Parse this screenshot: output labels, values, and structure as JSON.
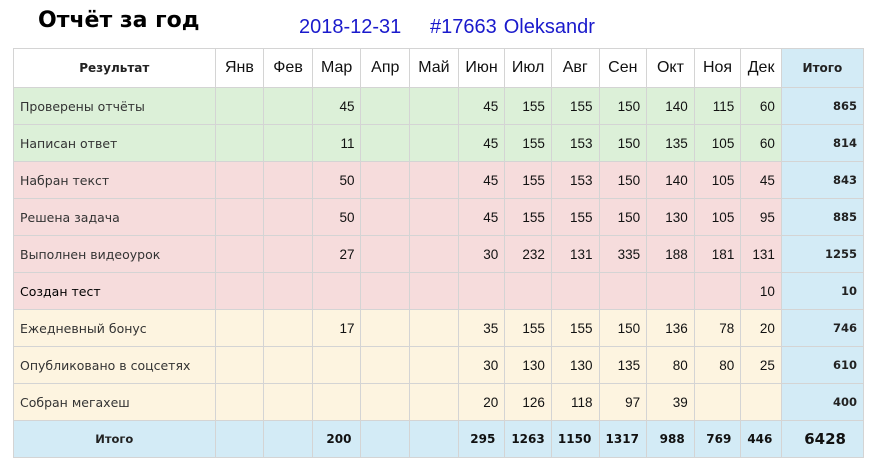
{
  "header": {
    "title": "Отчёт за год",
    "date": "2018-12-31",
    "user_id": "#17663",
    "user_name": "Oleksandr"
  },
  "table": {
    "label_header": "Результат",
    "total_header": "Итого",
    "months": [
      "Янв",
      "Фев",
      "Мар",
      "Апр",
      "Май",
      "Июн",
      "Июл",
      "Авг",
      "Сен",
      "Окт",
      "Ноя",
      "Дек"
    ],
    "rows": [
      {
        "label": "Проверены отчёты",
        "group": "green",
        "values": [
          "",
          "",
          "45",
          "",
          "",
          "45",
          "155",
          "155",
          "150",
          "140",
          "115",
          "60"
        ],
        "total": "865"
      },
      {
        "label": "Написан ответ",
        "group": "green",
        "values": [
          "",
          "",
          "11",
          "",
          "",
          "45",
          "155",
          "153",
          "150",
          "135",
          "105",
          "60"
        ],
        "total": "814"
      },
      {
        "label": "Набран текст",
        "group": "red",
        "values": [
          "",
          "",
          "50",
          "",
          "",
          "45",
          "155",
          "153",
          "150",
          "140",
          "105",
          "45"
        ],
        "total": "843"
      },
      {
        "label": "Решена задача",
        "group": "red",
        "values": [
          "",
          "",
          "50",
          "",
          "",
          "45",
          "155",
          "155",
          "150",
          "130",
          "105",
          "95"
        ],
        "total": "885"
      },
      {
        "label": "Выполнен видеоурок",
        "group": "red",
        "values": [
          "",
          "",
          "27",
          "",
          "",
          "30",
          "232",
          "131",
          "335",
          "188",
          "181",
          "131"
        ],
        "total": "1255"
      },
      {
        "label": "Создан тест",
        "group": "red",
        "values": [
          "",
          "",
          "",
          "",
          "",
          "",
          "",
          "",
          "",
          "",
          "",
          "10"
        ],
        "total": "10"
      },
      {
        "label": "Ежедневный бонус",
        "group": "yellow",
        "values": [
          "",
          "",
          "17",
          "",
          "",
          "35",
          "155",
          "155",
          "150",
          "136",
          "78",
          "20"
        ],
        "total": "746"
      },
      {
        "label": "Опубликовано в соцсетях",
        "group": "yellow",
        "values": [
          "",
          "",
          "",
          "",
          "",
          "30",
          "130",
          "130",
          "135",
          "80",
          "80",
          "25"
        ],
        "total": "610"
      },
      {
        "label": "Собран мегахеш",
        "group": "yellow",
        "values": [
          "",
          "",
          "",
          "",
          "",
          "20",
          "126",
          "118",
          "97",
          "39",
          "",
          ""
        ],
        "total": "400"
      }
    ],
    "totals": {
      "label": "Итого",
      "values": [
        "",
        "",
        "200",
        "",
        "",
        "295",
        "1263",
        "1150",
        "1317",
        "988",
        "769",
        "446"
      ],
      "grand": "6428"
    }
  },
  "colors": {
    "green_row": "#dcf0d8",
    "red_row": "#f6dcdc",
    "yellow_row": "#fdf4e0",
    "total_blue": "#d3ebf6",
    "link_blue": "#1a1acc"
  }
}
